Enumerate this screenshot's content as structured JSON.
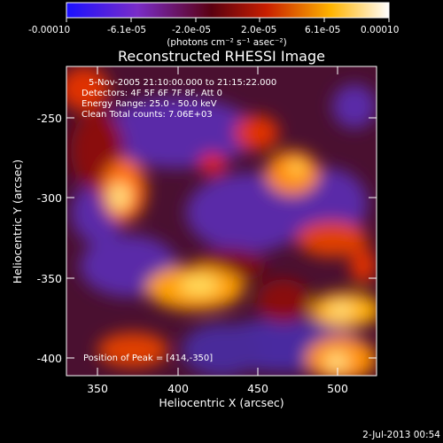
{
  "colorbar": {
    "tick_labels": [
      "-0.00010",
      "-6.1e-05",
      "-2.0e-05",
      "2.0e-05",
      "6.1e-05",
      "0.00010"
    ],
    "units_label": "(photons cm⁻² s⁻¹ asec⁻²)",
    "range": [
      -0.0001,
      0.0001
    ],
    "colors": [
      "#1a10ff",
      "#7a2cc8",
      "#5a0010",
      "#c81e00",
      "#ffb400",
      "#ffffff"
    ]
  },
  "plot": {
    "title": "Reconstructed RHESSI Image",
    "x_label": "Heliocentric X (arcsec)",
    "y_label": "Heliocentric Y (arcsec)",
    "x_ticks": [
      "350",
      "400",
      "450",
      "500"
    ],
    "y_ticks": [
      "-250",
      "-300",
      "-350",
      "-400"
    ],
    "x_range": [
      331,
      524
    ],
    "y_range": [
      -412,
      -222
    ],
    "info_lines": [
      "5-Nov-2005 21:10:00.000 to 21:15:22.000",
      "Detectors: 4F 5F 6F 7F 8F, Att 0",
      "Energy Range: 25.0 - 50.0 keV",
      "Clean     Total counts: 7.06E+03"
    ],
    "peak_label": "Position of Peak = [414,-350]"
  },
  "footer": {
    "timestamp": "2-Jul-2013 00:54"
  },
  "chart_data": {
    "type": "heatmap",
    "title": "Reconstructed RHESSI Image",
    "xlabel": "Heliocentric X (arcsec)",
    "ylabel": "Heliocentric Y (arcsec)",
    "xlim": [
      331,
      524
    ],
    "ylim": [
      -412,
      -222
    ],
    "colorbar_range": [
      -0.0001,
      0.0001
    ],
    "peak": [
      414,
      -350
    ]
  }
}
